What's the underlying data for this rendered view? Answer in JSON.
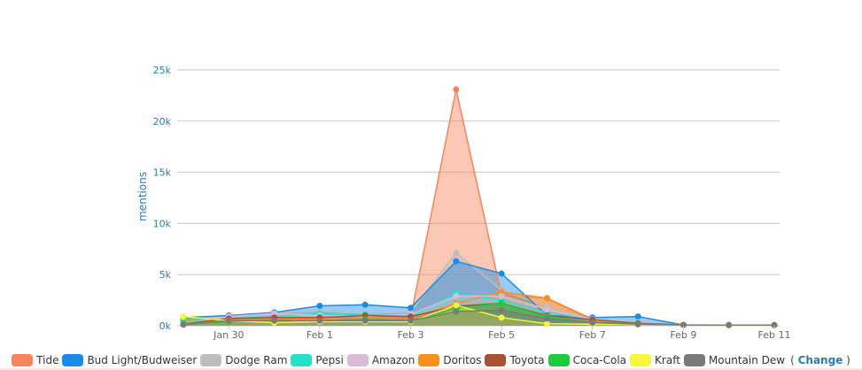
{
  "chart_data": {
    "type": "area",
    "ylabel": "mentions",
    "ylim": [
      0,
      25000
    ],
    "yticks": [
      0,
      5000,
      10000,
      15000,
      20000,
      25000
    ],
    "ytick_labels": [
      "0k",
      "5k",
      "10k",
      "15k",
      "20k",
      "25k"
    ],
    "x_tick_labels": [
      "Jan 30",
      "Feb 1",
      "Feb 3",
      "Feb 5",
      "Feb 7",
      "Feb 9",
      "Feb 11"
    ],
    "x": [
      "Jan 29",
      "Jan 30",
      "Jan 31",
      "Feb 1",
      "Feb 2",
      "Feb 3",
      "Feb 4",
      "Feb 5",
      "Feb 6",
      "Feb 7",
      "Feb 8",
      "Feb 9",
      "Feb 10",
      "Feb 11"
    ],
    "grid": true,
    "legend_position": "bottom",
    "series": [
      {
        "name": "Tide",
        "color": "#f7845a",
        "values": [
          700,
          750,
          800,
          700,
          750,
          800,
          23100,
          3000,
          2700,
          650,
          300,
          80,
          60,
          60
        ]
      },
      {
        "name": "Bud Light/Budweiser",
        "color": "#1a8ce8",
        "values": [
          800,
          1000,
          1300,
          1950,
          2050,
          1750,
          6300,
          5100,
          1000,
          800,
          900,
          80,
          60,
          60
        ]
      },
      {
        "name": "Dodge Ram",
        "color": "#bdbdbd",
        "values": [
          300,
          1000,
          1300,
          1450,
          1200,
          1350,
          7100,
          3500,
          1900,
          600,
          350,
          80,
          60,
          60
        ]
      },
      {
        "name": "Pepsi",
        "color": "#26e0c8",
        "values": [
          600,
          700,
          900,
          1200,
          1100,
          900,
          3200,
          2500,
          1300,
          600,
          350,
          80,
          60,
          60
        ]
      },
      {
        "name": "Amazon",
        "color": "#d9bcd9",
        "values": [
          200,
          900,
          1200,
          1000,
          900,
          1100,
          2900,
          2900,
          1600,
          650,
          350,
          80,
          60,
          60
        ]
      },
      {
        "name": "Doritos",
        "color": "#f7901e",
        "values": [
          500,
          600,
          700,
          600,
          800,
          700,
          2200,
          3300,
          2700,
          500,
          300,
          80,
          60,
          60
        ]
      },
      {
        "name": "Toyota",
        "color": "#a55235",
        "values": [
          200,
          700,
          800,
          800,
          1000,
          900,
          1900,
          2200,
          1000,
          600,
          250,
          80,
          60,
          60
        ]
      },
      {
        "name": "Coca-Cola",
        "color": "#1ecb3c",
        "values": [
          200,
          400,
          500,
          500,
          600,
          500,
          1700,
          2200,
          900,
          300,
          200,
          80,
          60,
          60
        ]
      },
      {
        "name": "Kraft",
        "color": "#f6f63c",
        "values": [
          900,
          500,
          300,
          400,
          400,
          400,
          2000,
          800,
          200,
          150,
          100,
          60,
          50,
          50
        ]
      },
      {
        "name": "Mountain Dew",
        "color": "#7a7a7a",
        "values": [
          100,
          500,
          500,
          500,
          500,
          500,
          1400,
          1500,
          700,
          300,
          150,
          80,
          60,
          60
        ]
      }
    ]
  },
  "legend": {
    "change_open": "(",
    "change_label": "Change",
    "change_close": ")"
  }
}
